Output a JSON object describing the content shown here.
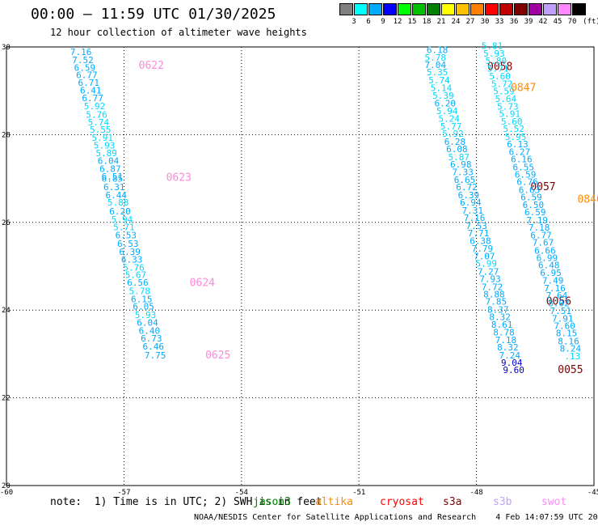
{
  "title": "00:00 – 11:59 UTC 01/30/2025",
  "subtitle": "12 hour collection of altimeter wave heights",
  "legend": {
    "unit": "(ft)",
    "colors": [
      "#808080",
      "#00ffff",
      "#00aaff",
      "#0000ff",
      "#00ff00",
      "#00c000",
      "#008000",
      "#ffff00",
      "#ffc000",
      "#ff8000",
      "#ff0000",
      "#c00000",
      "#800000",
      "#a000a0",
      "#c0a0ff",
      "#ff88ff",
      "#000000"
    ],
    "labels": [
      "3",
      "6",
      "9",
      "12",
      "15",
      "18",
      "21",
      "24",
      "27",
      "30",
      "33",
      "36",
      "39",
      "42",
      "45",
      "70"
    ]
  },
  "axes": {
    "x_ticks": [
      "-60",
      "-57",
      "-54",
      "-51",
      "-48",
      "-45"
    ],
    "y_ticks": [
      "30",
      "28",
      "26",
      "24",
      "22",
      "20"
    ]
  },
  "passes": [
    {
      "id": "0622",
      "color": "#ff88dd",
      "label_at": [
        -56.3,
        29.5
      ],
      "points": [
        [
          -58.1,
          29.82,
          "7.16"
        ],
        [
          -58.05,
          29.63,
          "7.52"
        ],
        [
          -58.0,
          29.46,
          "6.59"
        ],
        [
          -57.95,
          29.29,
          "6.77"
        ],
        [
          -57.9,
          29.11,
          "6.71"
        ],
        [
          -57.85,
          28.94,
          "6.41"
        ],
        [
          -57.8,
          28.76,
          "6.77"
        ],
        [
          -57.75,
          28.58,
          "5.92"
        ],
        [
          -57.7,
          28.39,
          "5.76"
        ],
        [
          -57.65,
          28.21,
          "5.74"
        ],
        [
          -57.6,
          28.04,
          "5.55"
        ],
        [
          -57.55,
          27.86,
          "5.91"
        ],
        [
          -57.5,
          27.68,
          "5.93"
        ],
        [
          -57.45,
          27.51,
          "5.89"
        ],
        [
          -57.4,
          27.33,
          "6.04"
        ],
        [
          -57.35,
          27.15,
          "6.87"
        ],
        [
          -57.3,
          26.97,
          "6.51"
        ]
      ]
    },
    {
      "id": "0623",
      "color": "#ff88dd",
      "label_at": [
        -55.6,
        26.95
      ],
      "points": [
        [
          -57.3,
          26.93,
          "6.85"
        ],
        [
          -57.25,
          26.73,
          "6.31"
        ],
        [
          -57.2,
          26.55,
          "6.44"
        ],
        [
          -57.15,
          26.38,
          "5.88"
        ],
        [
          -57.1,
          26.18,
          "6.20"
        ],
        [
          -57.05,
          26.0,
          "5.94"
        ],
        [
          -57.0,
          25.82,
          "5.71"
        ],
        [
          -56.95,
          25.64,
          "6.53"
        ],
        [
          -56.9,
          25.44,
          "6.53"
        ],
        [
          -56.85,
          25.26,
          "6.39"
        ],
        [
          -56.8,
          25.08,
          "6.33"
        ],
        [
          -56.75,
          24.9,
          "5.76"
        ],
        [
          -56.7,
          24.73,
          "5.67"
        ],
        [
          -56.65,
          24.56,
          "6.56"
        ]
      ]
    },
    {
      "id": "0624",
      "color": "#ff88dd",
      "label_at": [
        -55.0,
        24.55
      ],
      "points": [
        [
          -56.6,
          24.36,
          "5.78"
        ],
        [
          -56.55,
          24.18,
          "6.15"
        ],
        [
          -56.5,
          24.01,
          "6.05"
        ],
        [
          -56.45,
          23.82,
          "5.93"
        ],
        [
          -56.4,
          23.64,
          "6.04"
        ],
        [
          -56.35,
          23.46,
          "6.40"
        ],
        [
          -56.3,
          23.28,
          "6.73"
        ],
        [
          -56.25,
          23.1,
          "6.46"
        ],
        [
          -56.2,
          22.9,
          "7.75"
        ]
      ]
    },
    {
      "id": "0625",
      "color": "#ff88dd",
      "label_at": [
        -54.6,
        22.9
      ],
      "points": []
    },
    {
      "id": "0058",
      "color": "#800000",
      "label_at": [
        -47.4,
        29.47
      ],
      "points": [
        [
          -49.0,
          29.86,
          "6.18"
        ],
        [
          -49.05,
          29.69,
          "5.78"
        ],
        [
          -49.05,
          29.52,
          "7.04"
        ],
        [
          -49.0,
          29.35,
          "5.35"
        ],
        [
          -48.95,
          29.17,
          "5.74"
        ],
        [
          -48.9,
          28.99,
          "5.14"
        ],
        [
          -48.85,
          28.82,
          "5.39"
        ],
        [
          -48.8,
          28.64,
          "6.20"
        ],
        [
          -48.75,
          28.47,
          "5.94"
        ],
        [
          -48.7,
          28.29,
          "5.24"
        ],
        [
          -48.65,
          28.12,
          "5.77"
        ],
        [
          -48.6,
          27.95,
          "5.92"
        ],
        [
          -48.55,
          27.77,
          "6.28"
        ],
        [
          -48.5,
          27.6,
          "6.08"
        ],
        [
          -48.45,
          27.42,
          "5.87"
        ],
        [
          -48.4,
          27.25,
          "6.98"
        ],
        [
          -48.35,
          27.08,
          "7.33"
        ],
        [
          -48.3,
          26.9,
          "6.65"
        ],
        [
          -48.25,
          26.73,
          "6.72"
        ]
      ]
    },
    {
      "id": "0057",
      "color": "#800000",
      "label_at": [
        -46.3,
        26.73
      ],
      "points": [
        [
          -48.2,
          26.55,
          "6.39"
        ],
        [
          -48.15,
          26.38,
          "6.94"
        ],
        [
          -48.1,
          26.2,
          "7.31"
        ],
        [
          -48.05,
          26.03,
          "7.16"
        ],
        [
          -48.0,
          25.85,
          "7.53"
        ],
        [
          -47.95,
          25.68,
          "7.71"
        ],
        [
          -47.9,
          25.51,
          "6.38"
        ],
        [
          -47.85,
          25.33,
          "7.79"
        ],
        [
          -47.8,
          25.16,
          "7.07"
        ],
        [
          -47.75,
          24.99,
          "5.99"
        ],
        [
          -47.7,
          24.81,
          "7.27"
        ],
        [
          -47.65,
          24.64,
          "7.93"
        ],
        [
          -47.6,
          24.46,
          "7.72"
        ],
        [
          -47.55,
          24.29,
          "8.88"
        ],
        [
          -47.5,
          24.12,
          "7.85"
        ]
      ]
    },
    {
      "id": "0056",
      "color": "#800000",
      "label_at": [
        -45.9,
        24.12
      ],
      "points": [
        [
          -47.45,
          23.94,
          "8.37"
        ],
        [
          -47.4,
          23.77,
          "8.32"
        ],
        [
          -47.35,
          23.6,
          "8.61"
        ],
        [
          -47.3,
          23.42,
          "8.78"
        ],
        [
          -47.25,
          23.25,
          "7.18"
        ],
        [
          -47.2,
          23.08,
          "8.32"
        ],
        [
          -47.15,
          22.9,
          "7.24"
        ],
        [
          -47.1,
          22.73,
          "9.04"
        ],
        [
          -47.05,
          22.56,
          "9.60"
        ]
      ]
    },
    {
      "id": "0055",
      "color": "#800000",
      "label_at": [
        -45.6,
        22.56
      ],
      "points": []
    },
    {
      "id": "0847",
      "color": "#ff8c00",
      "label_at": [
        -46.8,
        28.99
      ],
      "points": [
        [
          -47.6,
          29.95,
          "5.81"
        ],
        [
          -47.55,
          29.78,
          "5.93"
        ],
        [
          -47.5,
          29.61,
          "5.80"
        ],
        [
          -47.45,
          29.44,
          "5.71"
        ],
        [
          -47.4,
          29.26,
          "5.60"
        ],
        [
          -47.35,
          29.09,
          "5.72"
        ],
        [
          -47.3,
          28.92,
          "5.59"
        ],
        [
          -47.25,
          28.75,
          "5.64"
        ],
        [
          -47.2,
          28.57,
          "5.73"
        ],
        [
          -47.15,
          28.4,
          "5.91"
        ],
        [
          -47.1,
          28.23,
          "5.60"
        ],
        [
          -47.05,
          28.06,
          "5.52"
        ],
        [
          -47.0,
          27.88,
          "5.95"
        ],
        [
          -46.95,
          27.71,
          "6.13"
        ],
        [
          -46.9,
          27.54,
          "6.27"
        ],
        [
          -46.85,
          27.37,
          "6.16"
        ],
        [
          -46.8,
          27.19,
          "6.55"
        ],
        [
          -46.75,
          27.02,
          "6.59"
        ],
        [
          -46.7,
          26.85,
          "6.76"
        ]
      ]
    },
    {
      "id": "0846",
      "color": "#ff8c00",
      "label_at": [
        -45.1,
        26.45
      ],
      "points": [
        [
          -46.65,
          26.67,
          "6.63"
        ],
        [
          -46.6,
          26.5,
          "6.59"
        ],
        [
          -46.55,
          26.33,
          "6.50"
        ],
        [
          -46.5,
          26.16,
          "6.59"
        ],
        [
          -46.45,
          25.98,
          "7.19"
        ],
        [
          -46.4,
          25.81,
          "7.18"
        ],
        [
          -46.35,
          25.64,
          "6.77"
        ],
        [
          -46.3,
          25.47,
          "7.67"
        ],
        [
          -46.25,
          25.29,
          "6.66"
        ],
        [
          -46.2,
          25.12,
          "6.99"
        ],
        [
          -46.15,
          24.95,
          "6.48"
        ],
        [
          -46.1,
          24.78,
          "6.95"
        ],
        [
          -46.05,
          24.6,
          "7.49"
        ],
        [
          -46.0,
          24.43,
          "7.16"
        ],
        [
          -45.95,
          24.26,
          "7.64"
        ]
      ]
    },
    {
      "id": "084",
      "color": "#ff8c00",
      "label_at": [
        -44.3,
        24.0
      ],
      "points": [
        [
          -45.9,
          24.09,
          "8.02"
        ],
        [
          -45.85,
          23.91,
          "7.51"
        ],
        [
          -45.8,
          23.74,
          "7.91"
        ],
        [
          -45.75,
          23.57,
          "7.60"
        ],
        [
          -45.7,
          23.4,
          "8.15"
        ],
        [
          -45.65,
          23.22,
          "8.16"
        ],
        [
          -45.6,
          23.05,
          "8.24"
        ],
        [
          -45.55,
          22.88,
          ".13"
        ]
      ]
    }
  ],
  "note": "note:  1) Time is in UTC; 2) SWH is in feet",
  "satellites": [
    {
      "name": "jason3",
      "color": "#008000"
    },
    {
      "name": "altika",
      "color": "#ff8c00"
    },
    {
      "name": "cryosat",
      "color": "#ff0000"
    },
    {
      "name": "s3a",
      "color": "#800000"
    },
    {
      "name": "s3b",
      "color": "#c0a0ff"
    },
    {
      "name": "swot",
      "color": "#ff88ff"
    }
  ],
  "footer": "NOAA/NESDIS Center for Satellite Applications and Research    4 Feb 14:07:59 UTC 2025"
}
